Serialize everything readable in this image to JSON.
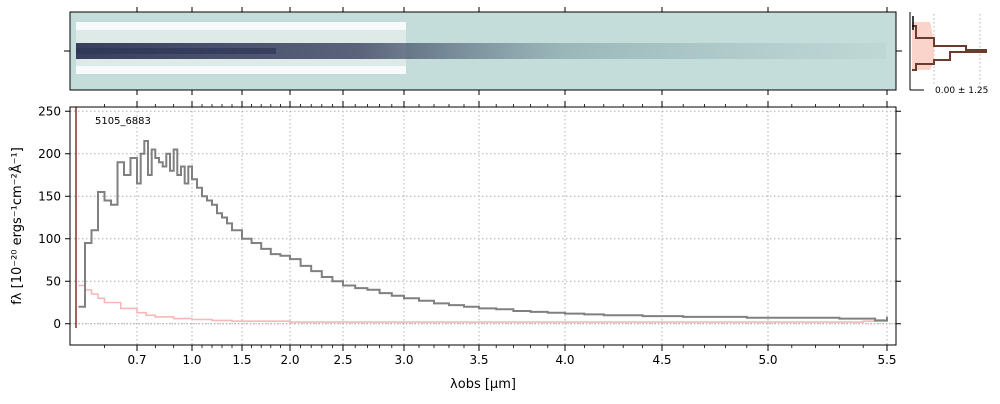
{
  "colors": {
    "spectrum": "#808080",
    "uncertainty": "#f6b8b8",
    "image_background": "#c4dcda",
    "image_trace_dark": "#2e3656",
    "profile_line": "#6b3b2e",
    "profile_fill": "#f9c9bd",
    "grid": "#b0b0b0"
  },
  "chart_data": {
    "type": "line",
    "label": "5105_6883",
    "xlabel": "λobs [μm]",
    "ylabel": "fλ [10⁻²⁰ ergs⁻¹cm⁻²Å⁻¹]",
    "x_scale": "nonlinear (compressed at long wavelengths)",
    "xlim": [
      0.5,
      5.52
    ],
    "ylim": [
      -25,
      255
    ],
    "x_ticks": [
      0.7,
      1.0,
      1.5,
      2.0,
      2.5,
      3.0,
      3.5,
      4.0,
      4.5,
      5.0,
      5.5
    ],
    "x_tick_labels": [
      "0.7",
      "1.0",
      "1.5",
      "2.0",
      "2.5",
      "3.0",
      "3.5",
      "4.0",
      "4.5",
      "5.0",
      "5.5"
    ],
    "y_ticks": [
      0,
      50,
      100,
      150,
      200,
      250
    ],
    "grid": true,
    "series": [
      {
        "role": "flux",
        "x": [
          0.52,
          0.54,
          0.56,
          0.58,
          0.6,
          0.62,
          0.64,
          0.66,
          0.68,
          0.7,
          0.72,
          0.74,
          0.76,
          0.78,
          0.8,
          0.82,
          0.84,
          0.86,
          0.88,
          0.9,
          0.92,
          0.94,
          0.96,
          0.98,
          1.0,
          1.05,
          1.1,
          1.15,
          1.2,
          1.25,
          1.3,
          1.35,
          1.4,
          1.5,
          1.6,
          1.7,
          1.8,
          1.9,
          2.0,
          2.1,
          2.2,
          2.3,
          2.4,
          2.5,
          2.6,
          2.7,
          2.8,
          2.9,
          3.0,
          3.1,
          3.2,
          3.3,
          3.4,
          3.5,
          3.6,
          3.7,
          3.8,
          3.9,
          4.0,
          4.1,
          4.2,
          4.3,
          4.4,
          4.5,
          4.6,
          4.7,
          4.8,
          4.9,
          5.0,
          5.1,
          5.2,
          5.3,
          5.4,
          5.45,
          5.5
        ],
        "y": [
          20,
          95,
          110,
          155,
          145,
          140,
          190,
          175,
          195,
          165,
          200,
          215,
          175,
          205,
          195,
          190,
          185,
          200,
          180,
          205,
          175,
          185,
          165,
          185,
          170,
          160,
          150,
          145,
          140,
          130,
          125,
          118,
          110,
          100,
          95,
          88,
          82,
          80,
          76,
          68,
          62,
          55,
          50,
          45,
          42,
          40,
          36,
          33,
          30,
          27,
          24,
          22,
          20,
          18,
          17,
          15,
          14,
          13,
          12,
          11,
          10,
          10,
          9,
          9,
          8,
          8,
          8,
          7,
          7,
          7,
          7,
          6,
          6,
          4,
          8
        ]
      },
      {
        "role": "uncertainty",
        "x": [
          0.52,
          0.54,
          0.56,
          0.58,
          0.6,
          0.65,
          0.7,
          0.75,
          0.8,
          0.9,
          1.0,
          1.2,
          1.4,
          1.6,
          2.0,
          2.5,
          3.0,
          3.5,
          4.0,
          4.5,
          5.0,
          5.4,
          5.5
        ],
        "y": [
          45,
          40,
          35,
          30,
          25,
          18,
          13,
          10,
          8,
          6,
          5,
          4,
          3,
          3,
          2,
          2,
          2,
          2,
          2,
          2,
          2,
          3,
          8
        ]
      }
    ]
  },
  "profile_panel": {
    "label": "0.00 ± 1.25"
  }
}
